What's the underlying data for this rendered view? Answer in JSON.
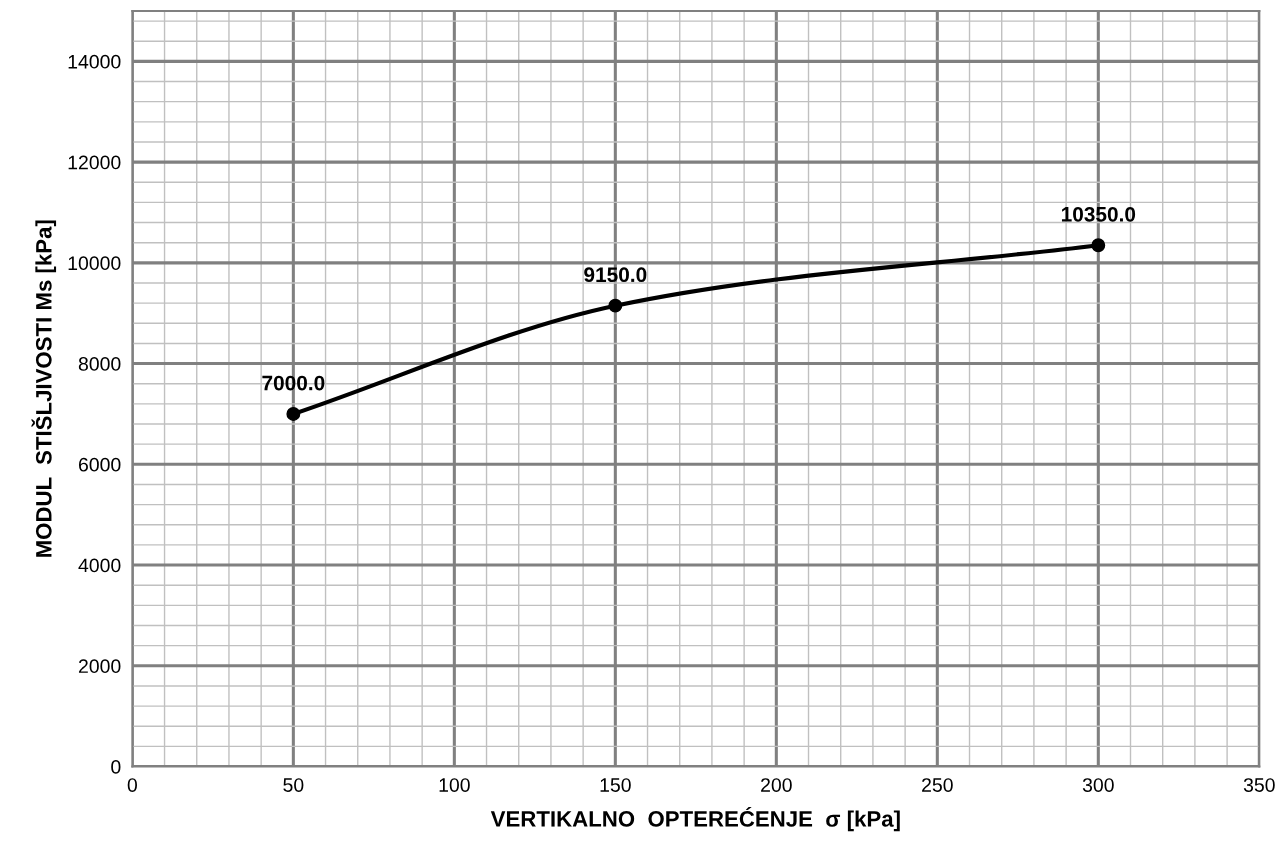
{
  "chart_data": {
    "type": "line",
    "xlabel": "VERTIKALNO  OPTEREĆENJE  σ [kPa]",
    "ylabel": "MODUL  STIŠLJIVOSTI Ms [kPa]",
    "x": [
      50,
      150,
      300
    ],
    "series": [
      {
        "color": "#000000",
        "values": [
          7000,
          9150,
          10350
        ],
        "value_labels": [
          "7000.0",
          "9150.0",
          "10350.0"
        ]
      }
    ],
    "xlim": [
      0,
      350
    ],
    "xticks": [
      0,
      50,
      100,
      150,
      200,
      250,
      300,
      350
    ],
    "ylim": [
      0,
      15000
    ],
    "yticks": [
      0,
      2000,
      4000,
      6000,
      8000,
      10000,
      12000,
      14000
    ],
    "grid": true,
    "marker": "circle",
    "line_style": "solid"
  }
}
